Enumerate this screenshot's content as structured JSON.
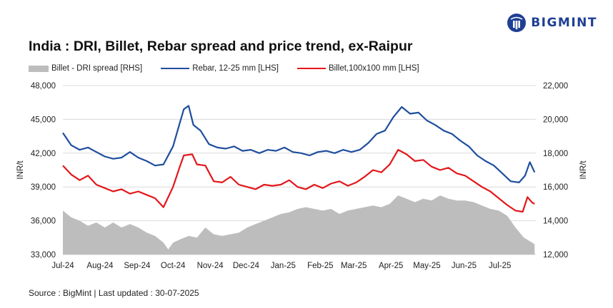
{
  "brand": {
    "name": "BIGMINT",
    "color": "#1f3f94"
  },
  "title": "India : DRI, Billet, Rebar spread and price trend, ex-Raipur",
  "source": "Source : BigMint | Last updated : 30-07-2025",
  "chart_data": {
    "type": "line",
    "title": "India : DRI, Billet, Rebar spread and price trend, ex-Raipur",
    "ylabel": "INR/t",
    "y2label": "INR/t",
    "ylim": [
      33000,
      48000
    ],
    "y2lim": [
      12000,
      22000
    ],
    "yticks": [
      "33,000",
      "36,000",
      "39,000",
      "42,000",
      "45,000",
      "48,000"
    ],
    "y2ticks": [
      "12,000",
      "14,000",
      "16,000",
      "18,000",
      "20,000",
      "22,000"
    ],
    "xticks": [
      "Jul-24",
      "Aug-24",
      "Sep-24",
      "Oct-24",
      "Nov-24",
      "Dec-24",
      "Jan-25",
      "Feb-25",
      "Mar-25",
      "Apr-25",
      "May-25",
      "Jun-25",
      "Jul-25"
    ],
    "grid": true,
    "legend_position": "top",
    "series": [
      {
        "name": "Billet - DRI spread  [RHS]",
        "kind": "area",
        "axis": "right",
        "color": "#bdbdbd",
        "points": [
          [
            "2024-07-01",
            14600
          ],
          [
            "2024-07-08",
            14200
          ],
          [
            "2024-07-15",
            14000
          ],
          [
            "2024-07-22",
            13700
          ],
          [
            "2024-07-29",
            13900
          ],
          [
            "2024-08-05",
            13600
          ],
          [
            "2024-08-12",
            13900
          ],
          [
            "2024-08-19",
            13600
          ],
          [
            "2024-08-26",
            13800
          ],
          [
            "2024-09-02",
            13600
          ],
          [
            "2024-09-09",
            13300
          ],
          [
            "2024-09-16",
            13100
          ],
          [
            "2024-09-23",
            12700
          ],
          [
            "2024-09-27",
            12300
          ],
          [
            "2024-10-01",
            12700
          ],
          [
            "2024-10-07",
            12900
          ],
          [
            "2024-10-14",
            13100
          ],
          [
            "2024-10-21",
            13000
          ],
          [
            "2024-10-28",
            13600
          ],
          [
            "2024-11-04",
            13200
          ],
          [
            "2024-11-11",
            13100
          ],
          [
            "2024-11-18",
            13200
          ],
          [
            "2024-11-25",
            13300
          ],
          [
            "2024-12-02",
            13600
          ],
          [
            "2024-12-09",
            13800
          ],
          [
            "2024-12-16",
            14000
          ],
          [
            "2024-12-23",
            14200
          ],
          [
            "2024-12-30",
            14400
          ],
          [
            "2025-01-06",
            14500
          ],
          [
            "2025-01-13",
            14700
          ],
          [
            "2025-01-20",
            14800
          ],
          [
            "2025-01-27",
            14700
          ],
          [
            "2025-02-03",
            14600
          ],
          [
            "2025-02-10",
            14700
          ],
          [
            "2025-02-17",
            14400
          ],
          [
            "2025-02-24",
            14600
          ],
          [
            "2025-03-03",
            14700
          ],
          [
            "2025-03-10",
            14800
          ],
          [
            "2025-03-17",
            14900
          ],
          [
            "2025-03-24",
            14800
          ],
          [
            "2025-03-31",
            15000
          ],
          [
            "2025-04-07",
            15500
          ],
          [
            "2025-04-14",
            15300
          ],
          [
            "2025-04-21",
            15100
          ],
          [
            "2025-04-28",
            15300
          ],
          [
            "2025-05-05",
            15200
          ],
          [
            "2025-05-12",
            15500
          ],
          [
            "2025-05-19",
            15300
          ],
          [
            "2025-05-26",
            15200
          ],
          [
            "2025-06-02",
            15200
          ],
          [
            "2025-06-09",
            15100
          ],
          [
            "2025-06-16",
            14900
          ],
          [
            "2025-06-23",
            14700
          ],
          [
            "2025-06-30",
            14600
          ],
          [
            "2025-07-07",
            14300
          ],
          [
            "2025-07-14",
            13600
          ],
          [
            "2025-07-21",
            13000
          ],
          [
            "2025-07-28",
            12700
          ],
          [
            "2025-07-30",
            12600
          ]
        ]
      },
      {
        "name": "Rebar, 12-25 mm [LHS]",
        "kind": "line",
        "axis": "left",
        "color": "#1f4e9e",
        "points": [
          [
            "2024-07-01",
            43800
          ],
          [
            "2024-07-08",
            42700
          ],
          [
            "2024-07-15",
            42300
          ],
          [
            "2024-07-22",
            42500
          ],
          [
            "2024-07-29",
            42100
          ],
          [
            "2024-08-05",
            41700
          ],
          [
            "2024-08-12",
            41500
          ],
          [
            "2024-08-19",
            41600
          ],
          [
            "2024-08-26",
            42100
          ],
          [
            "2024-09-02",
            41600
          ],
          [
            "2024-09-09",
            41300
          ],
          [
            "2024-09-16",
            40900
          ],
          [
            "2024-09-23",
            41000
          ],
          [
            "2024-10-01",
            42600
          ],
          [
            "2024-10-07",
            44800
          ],
          [
            "2024-10-10",
            45900
          ],
          [
            "2024-10-14",
            46200
          ],
          [
            "2024-10-18",
            44500
          ],
          [
            "2024-10-24",
            44000
          ],
          [
            "2024-10-31",
            42800
          ],
          [
            "2024-11-07",
            42500
          ],
          [
            "2024-11-14",
            42400
          ],
          [
            "2024-11-21",
            42600
          ],
          [
            "2024-11-28",
            42200
          ],
          [
            "2024-12-05",
            42300
          ],
          [
            "2024-12-12",
            42000
          ],
          [
            "2024-12-19",
            42300
          ],
          [
            "2024-12-26",
            42200
          ],
          [
            "2025-01-02",
            42500
          ],
          [
            "2025-01-09",
            42100
          ],
          [
            "2025-01-16",
            42000
          ],
          [
            "2025-01-23",
            41800
          ],
          [
            "2025-01-30",
            42100
          ],
          [
            "2025-02-06",
            42200
          ],
          [
            "2025-02-13",
            42000
          ],
          [
            "2025-02-20",
            42300
          ],
          [
            "2025-02-27",
            42100
          ],
          [
            "2025-03-06",
            42300
          ],
          [
            "2025-03-13",
            42900
          ],
          [
            "2025-03-20",
            43700
          ],
          [
            "2025-03-27",
            44000
          ],
          [
            "2025-04-03",
            45200
          ],
          [
            "2025-04-10",
            46100
          ],
          [
            "2025-04-17",
            45500
          ],
          [
            "2025-04-24",
            45600
          ],
          [
            "2025-05-01",
            44900
          ],
          [
            "2025-05-08",
            44500
          ],
          [
            "2025-05-15",
            44000
          ],
          [
            "2025-05-22",
            43700
          ],
          [
            "2025-05-29",
            43100
          ],
          [
            "2025-06-05",
            42600
          ],
          [
            "2025-06-12",
            41800
          ],
          [
            "2025-06-19",
            41300
          ],
          [
            "2025-06-26",
            40900
          ],
          [
            "2025-07-03",
            40200
          ],
          [
            "2025-07-10",
            39500
          ],
          [
            "2025-07-17",
            39400
          ],
          [
            "2025-07-22",
            40000
          ],
          [
            "2025-07-26",
            41200
          ],
          [
            "2025-07-30",
            40300
          ]
        ]
      },
      {
        "name": "Billet,100x100 mm [LHS]",
        "kind": "line",
        "axis": "left",
        "color": "#e3171b",
        "points": [
          [
            "2024-07-01",
            40900
          ],
          [
            "2024-07-08",
            40100
          ],
          [
            "2024-07-15",
            39600
          ],
          [
            "2024-07-22",
            40000
          ],
          [
            "2024-07-29",
            39200
          ],
          [
            "2024-08-05",
            38900
          ],
          [
            "2024-08-12",
            38600
          ],
          [
            "2024-08-19",
            38800
          ],
          [
            "2024-08-26",
            38400
          ],
          [
            "2024-09-02",
            38600
          ],
          [
            "2024-09-09",
            38300
          ],
          [
            "2024-09-16",
            38000
          ],
          [
            "2024-09-23",
            37200
          ],
          [
            "2024-10-01",
            39000
          ],
          [
            "2024-10-07",
            40900
          ],
          [
            "2024-10-10",
            41800
          ],
          [
            "2024-10-17",
            41900
          ],
          [
            "2024-10-21",
            41000
          ],
          [
            "2024-10-28",
            40900
          ],
          [
            "2024-11-04",
            39500
          ],
          [
            "2024-11-11",
            39400
          ],
          [
            "2024-11-18",
            39900
          ],
          [
            "2024-11-25",
            39200
          ],
          [
            "2024-12-02",
            39000
          ],
          [
            "2024-12-09",
            38800
          ],
          [
            "2024-12-16",
            39200
          ],
          [
            "2024-12-23",
            39100
          ],
          [
            "2024-12-30",
            39200
          ],
          [
            "2025-01-06",
            39600
          ],
          [
            "2025-01-13",
            39000
          ],
          [
            "2025-01-20",
            38800
          ],
          [
            "2025-01-27",
            39200
          ],
          [
            "2025-02-03",
            38900
          ],
          [
            "2025-02-10",
            39300
          ],
          [
            "2025-02-17",
            39500
          ],
          [
            "2025-02-24",
            39100
          ],
          [
            "2025-03-03",
            39400
          ],
          [
            "2025-03-10",
            39900
          ],
          [
            "2025-03-17",
            40500
          ],
          [
            "2025-03-24",
            40300
          ],
          [
            "2025-03-31",
            41000
          ],
          [
            "2025-04-07",
            42300
          ],
          [
            "2025-04-14",
            41900
          ],
          [
            "2025-04-21",
            41300
          ],
          [
            "2025-04-28",
            41400
          ],
          [
            "2025-05-05",
            40800
          ],
          [
            "2025-05-12",
            40500
          ],
          [
            "2025-05-19",
            40700
          ],
          [
            "2025-05-26",
            40200
          ],
          [
            "2025-06-02",
            40000
          ],
          [
            "2025-06-09",
            39500
          ],
          [
            "2025-06-16",
            39000
          ],
          [
            "2025-06-23",
            38600
          ],
          [
            "2025-06-30",
            38000
          ],
          [
            "2025-07-07",
            37400
          ],
          [
            "2025-07-14",
            36900
          ],
          [
            "2025-07-20",
            36800
          ],
          [
            "2025-07-24",
            38100
          ],
          [
            "2025-07-28",
            37600
          ],
          [
            "2025-07-30",
            37500
          ]
        ]
      }
    ]
  }
}
